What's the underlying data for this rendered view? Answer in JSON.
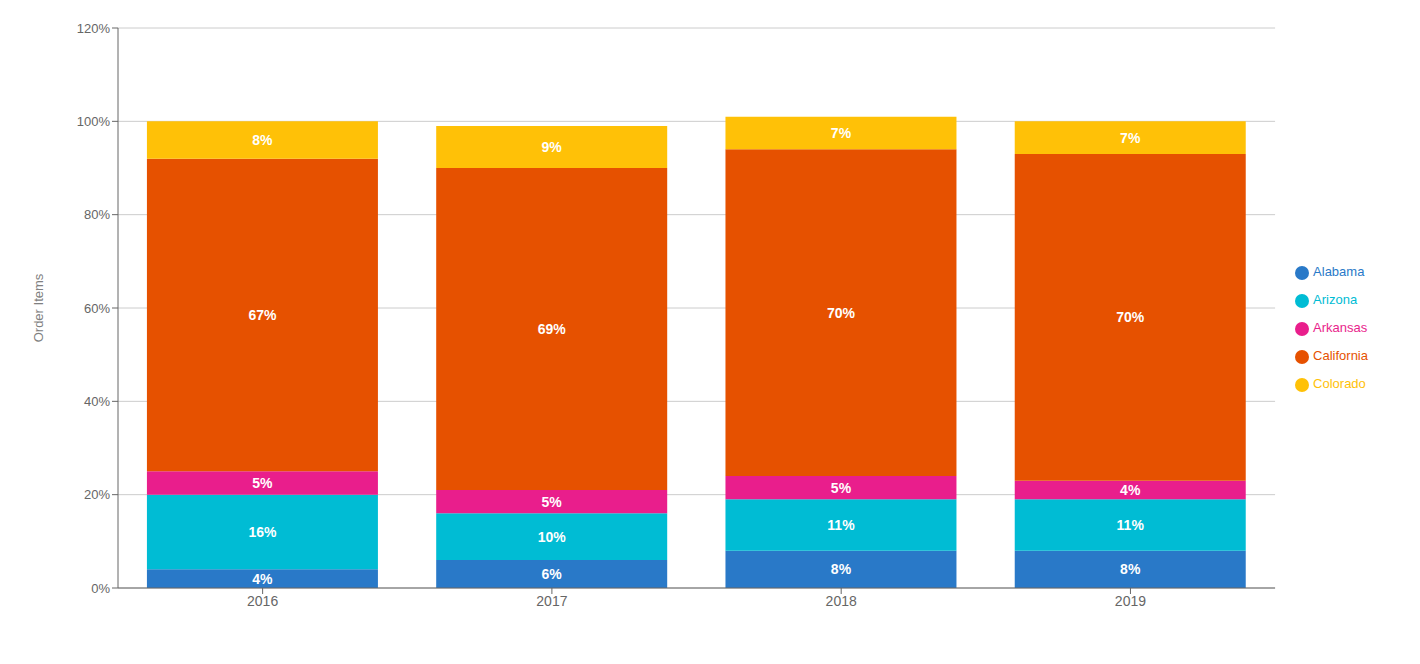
{
  "chart_data": {
    "type": "bar",
    "stacked": true,
    "categories": [
      "2016",
      "2017",
      "2018",
      "2019"
    ],
    "series": [
      {
        "name": "Alabama",
        "color": "#2979C8",
        "values": [
          4,
          6,
          8,
          8
        ],
        "value_labels": [
          "4%",
          "6%",
          "8%",
          "8%"
        ]
      },
      {
        "name": "Arizona",
        "color": "#00BCD4",
        "values": [
          16,
          10,
          11,
          11
        ],
        "value_labels": [
          "16%",
          "10%",
          "11%",
          "11%"
        ]
      },
      {
        "name": "Arkansas",
        "color": "#E91E8C",
        "values": [
          5,
          5,
          5,
          4
        ],
        "value_labels": [
          "5%",
          "5%",
          "5%",
          "4%"
        ]
      },
      {
        "name": "California",
        "color": "#E65100",
        "values": [
          67,
          69,
          70,
          70
        ],
        "value_labels": [
          "67%",
          "69%",
          "70%",
          "70%"
        ]
      },
      {
        "name": "Colorado",
        "color": "#FFC107",
        "values": [
          8,
          9,
          7,
          7
        ],
        "value_labels": [
          "8%",
          "9%",
          "7%",
          "7%"
        ]
      }
    ],
    "ylabel": "Order Items",
    "ylim": [
      0,
      120
    ],
    "yticks": [
      {
        "value": 0,
        "label": "0%"
      },
      {
        "value": 20,
        "label": "20%"
      },
      {
        "value": 40,
        "label": "40%"
      },
      {
        "value": 60,
        "label": "60%"
      },
      {
        "value": 80,
        "label": "80%"
      },
      {
        "value": 100,
        "label": "100%"
      },
      {
        "value": 120,
        "label": "120%"
      }
    ],
    "grid": true,
    "legend": "right",
    "data_labels": true
  }
}
